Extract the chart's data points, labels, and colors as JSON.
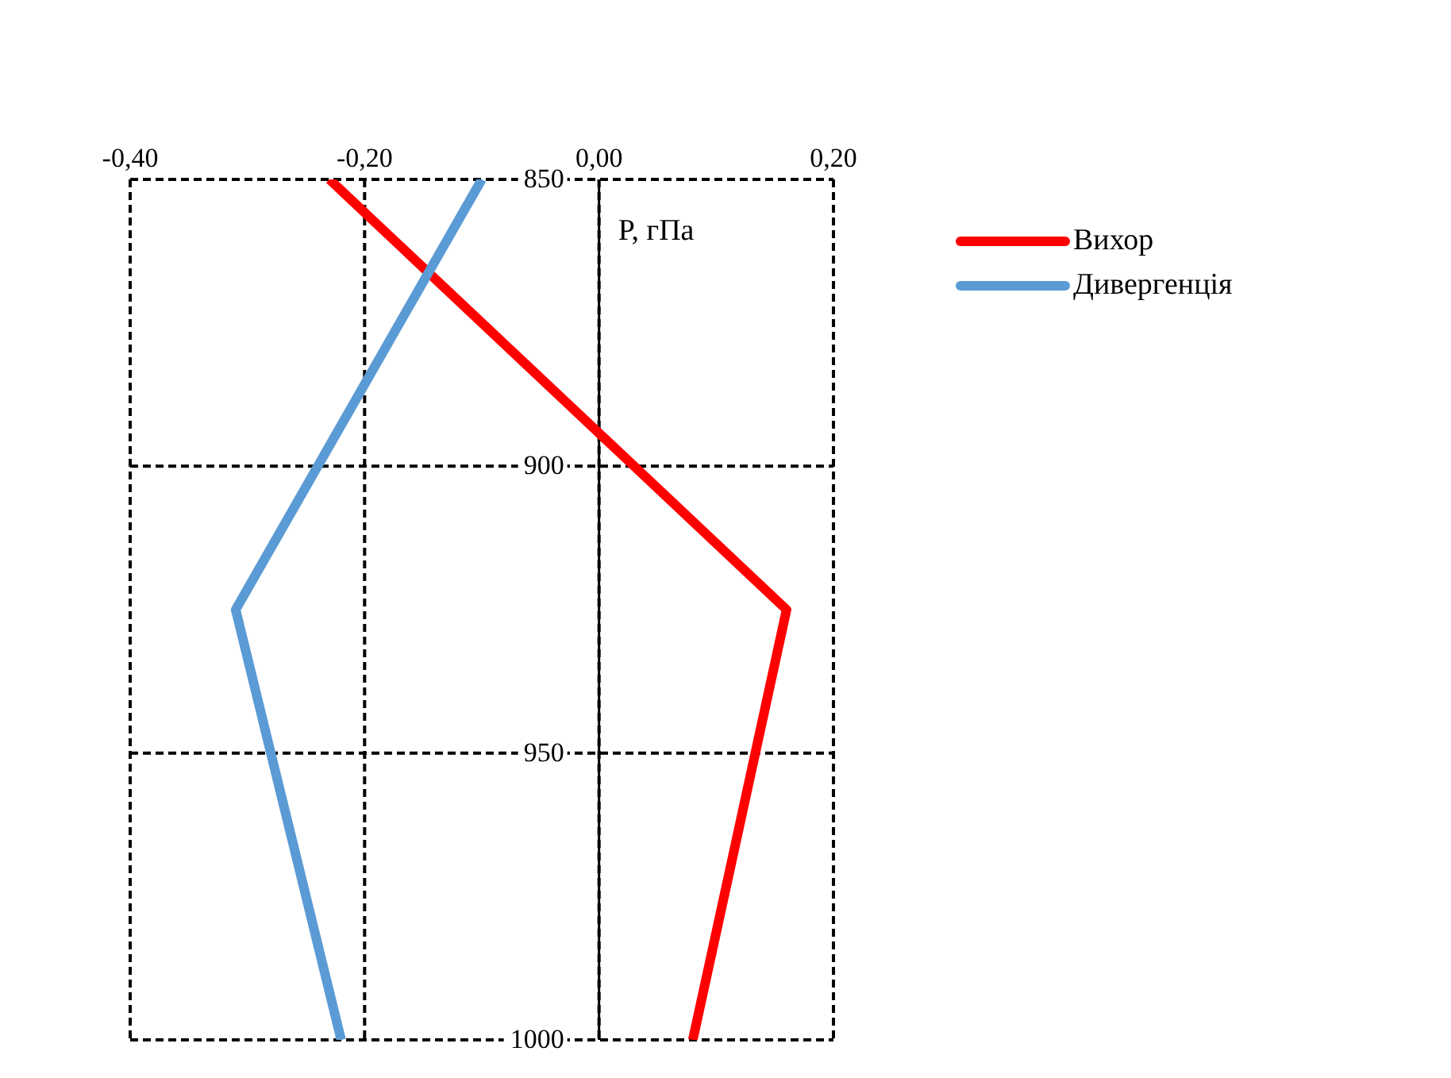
{
  "chart_data": {
    "type": "line",
    "ylabel": "P, гПа",
    "x": [
      850,
      925,
      1000
    ],
    "series": [
      {
        "name": "Вихор",
        "color": "#ff0000",
        "values": [
          -0.23,
          0.16,
          0.08
        ]
      },
      {
        "name": "Дивергенція",
        "color": "#5b9bd5",
        "values": [
          -0.1,
          -0.31,
          -0.22
        ]
      }
    ],
    "orientation": "horizontal",
    "xlim": [
      -0.4,
      0.2
    ],
    "xticks": [
      {
        "value": -0.4,
        "label": "-0,40"
      },
      {
        "value": -0.2,
        "label": "-0,20"
      },
      {
        "value": 0,
        "label": "0,00"
      },
      {
        "value": 0.2,
        "label": "0,20"
      }
    ],
    "ylim": [
      1000,
      850
    ],
    "yticks": [
      850,
      900,
      950,
      1000
    ],
    "grid": true,
    "legend": "top right",
    "marker": "none",
    "line_style": "solid"
  }
}
